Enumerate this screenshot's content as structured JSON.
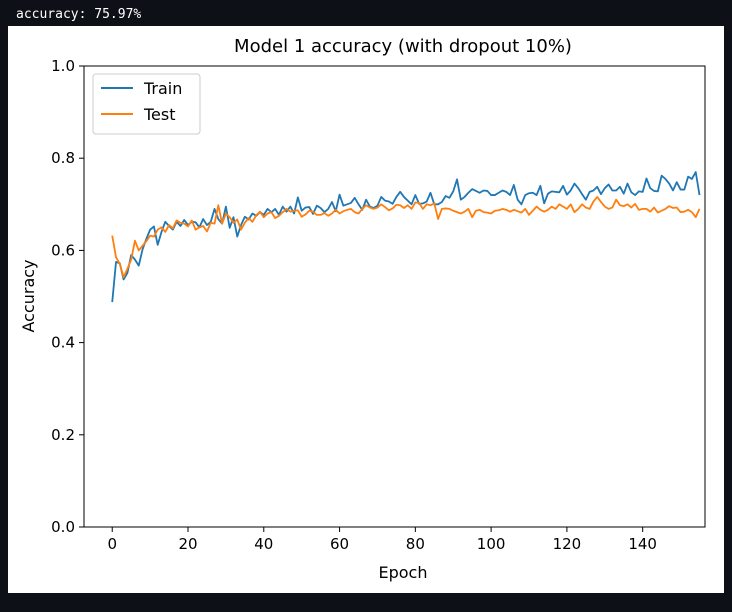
{
  "console": {
    "output_line": "accuracy: 75.97%"
  },
  "chart_data": {
    "type": "line",
    "title": "Model 1 accuracy (with dropout 10%)",
    "xlabel": "Epoch",
    "ylabel": "Accuracy",
    "xlim": [
      -7.45,
      156.45
    ],
    "ylim": [
      0,
      1
    ],
    "x_ticks": [
      0,
      20,
      40,
      60,
      80,
      100,
      120,
      140
    ],
    "y_ticks": [
      0.0,
      0.2,
      0.4,
      0.6,
      0.8,
      1.0
    ],
    "y_tick_labels": [
      "0.0",
      "0.2",
      "0.4",
      "0.6",
      "0.8",
      "1.0"
    ],
    "grid": false,
    "legend_position": "upper-left",
    "x_start": 0,
    "series": [
      {
        "name": "Train",
        "color": "#1f77b4",
        "values": [
          0.488,
          0.575,
          0.572,
          0.537,
          0.551,
          0.59,
          0.58,
          0.567,
          0.602,
          0.625,
          0.645,
          0.652,
          0.612,
          0.64,
          0.662,
          0.653,
          0.645,
          0.662,
          0.653,
          0.666,
          0.655,
          0.662,
          0.661,
          0.65,
          0.668,
          0.655,
          0.662,
          0.69,
          0.668,
          0.658,
          0.695,
          0.649,
          0.672,
          0.63,
          0.655,
          0.673,
          0.667,
          0.68,
          0.675,
          0.683,
          0.677,
          0.69,
          0.683,
          0.69,
          0.677,
          0.695,
          0.684,
          0.695,
          0.68,
          0.715,
          0.686,
          0.693,
          0.694,
          0.679,
          0.697,
          0.692,
          0.683,
          0.69,
          0.705,
          0.685,
          0.721,
          0.697,
          0.7,
          0.703,
          0.714,
          0.7,
          0.688,
          0.71,
          0.695,
          0.692,
          0.697,
          0.716,
          0.708,
          0.706,
          0.701,
          0.716,
          0.727,
          0.716,
          0.708,
          0.7,
          0.72,
          0.701,
          0.702,
          0.706,
          0.725,
          0.7,
          0.7,
          0.705,
          0.718,
          0.714,
          0.728,
          0.754,
          0.71,
          0.716,
          0.725,
          0.733,
          0.729,
          0.725,
          0.73,
          0.729,
          0.72,
          0.72,
          0.725,
          0.73,
          0.727,
          0.72,
          0.742,
          0.71,
          0.7,
          0.72,
          0.724,
          0.725,
          0.72,
          0.74,
          0.702,
          0.723,
          0.728,
          0.727,
          0.726,
          0.74,
          0.721,
          0.73,
          0.745,
          0.735,
          0.722,
          0.71,
          0.727,
          0.73,
          0.738,
          0.722,
          0.735,
          0.743,
          0.73,
          0.73,
          0.738,
          0.723,
          0.745,
          0.726,
          0.72,
          0.728,
          0.727,
          0.756,
          0.735,
          0.729,
          0.728,
          0.762,
          0.755,
          0.745,
          0.73,
          0.748,
          0.732,
          0.732,
          0.76,
          0.755,
          0.77,
          0.72
        ]
      },
      {
        "name": "Test",
        "color": "#ff7f0e",
        "values": [
          0.632,
          0.585,
          0.571,
          0.542,
          0.56,
          0.58,
          0.621,
          0.6,
          0.61,
          0.62,
          0.632,
          0.63,
          0.645,
          0.65,
          0.64,
          0.655,
          0.648,
          0.665,
          0.66,
          0.658,
          0.652,
          0.665,
          0.645,
          0.65,
          0.653,
          0.641,
          0.66,
          0.658,
          0.698,
          0.658,
          0.68,
          0.672,
          0.66,
          0.667,
          0.645,
          0.66,
          0.67,
          0.662,
          0.676,
          0.684,
          0.672,
          0.68,
          0.683,
          0.67,
          0.675,
          0.683,
          0.69,
          0.684,
          0.686,
          0.687,
          0.673,
          0.678,
          0.686,
          0.684,
          0.677,
          0.677,
          0.681,
          0.675,
          0.68,
          0.688,
          0.68,
          0.685,
          0.688,
          0.69,
          0.683,
          0.68,
          0.69,
          0.698,
          0.693,
          0.69,
          0.693,
          0.7,
          0.694,
          0.687,
          0.691,
          0.699,
          0.698,
          0.692,
          0.698,
          0.69,
          0.704,
          0.703,
          0.69,
          0.7,
          0.698,
          0.702,
          0.668,
          0.69,
          0.691,
          0.69,
          0.686,
          0.683,
          0.68,
          0.684,
          0.69,
          0.672,
          0.686,
          0.688,
          0.683,
          0.682,
          0.68,
          0.686,
          0.687,
          0.69,
          0.688,
          0.684,
          0.688,
          0.685,
          0.682,
          0.69,
          0.677,
          0.686,
          0.695,
          0.688,
          0.684,
          0.688,
          0.695,
          0.69,
          0.7,
          0.695,
          0.69,
          0.7,
          0.683,
          0.69,
          0.7,
          0.693,
          0.69,
          0.706,
          0.716,
          0.705,
          0.695,
          0.69,
          0.693,
          0.71,
          0.698,
          0.696,
          0.7,
          0.693,
          0.701,
          0.688,
          0.69,
          0.69,
          0.684,
          0.693,
          0.682,
          0.686,
          0.69,
          0.696,
          0.692,
          0.693,
          0.683,
          0.684,
          0.688,
          0.683,
          0.672,
          0.69
        ]
      }
    ]
  }
}
